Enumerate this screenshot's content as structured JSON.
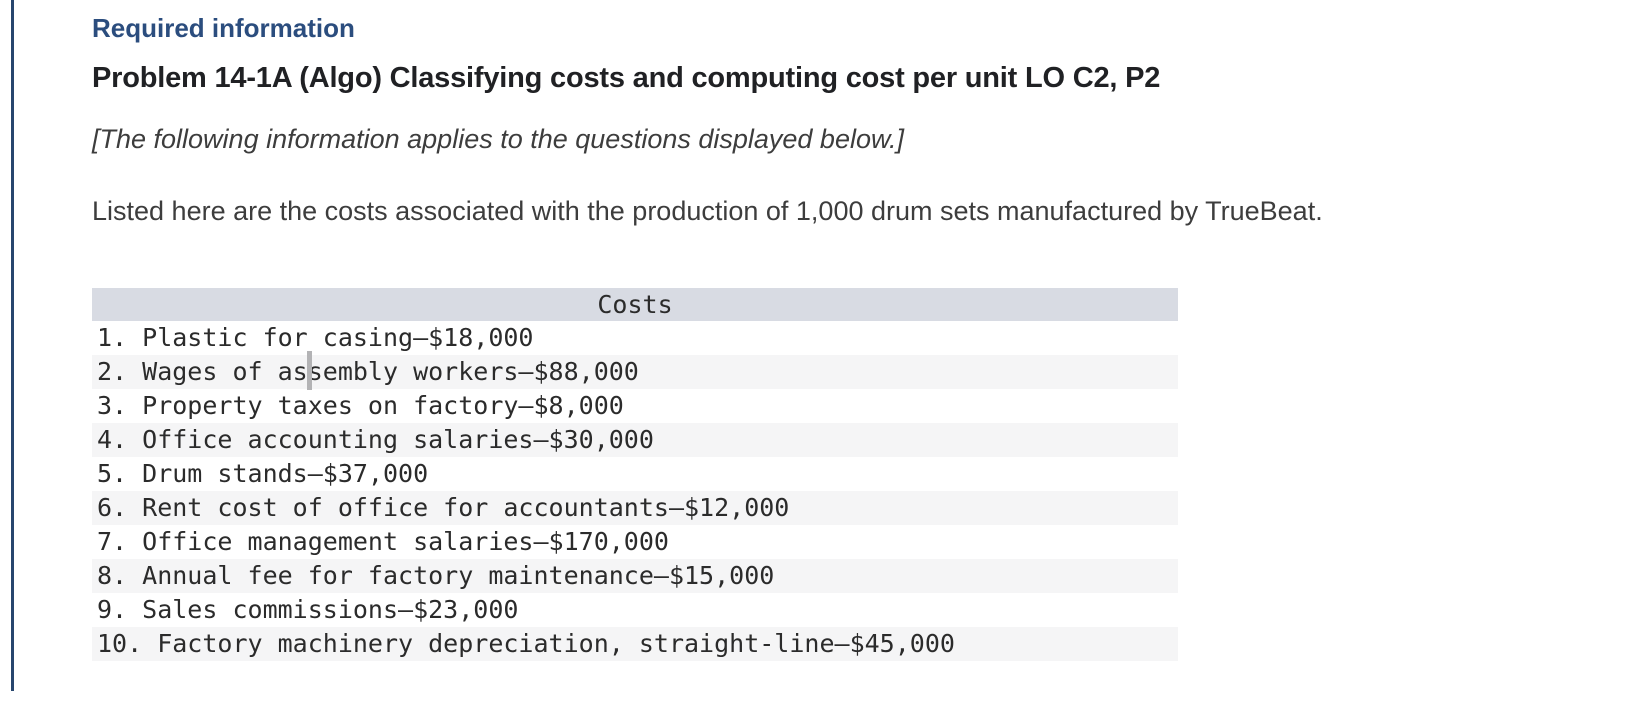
{
  "page": {
    "kicker": "Required information",
    "title": "Problem 14-1A (Algo) Classifying costs and computing cost per unit LO C2, P2",
    "note": "[The following information applies to the questions displayed below.]",
    "intro": "Listed here are the costs associated with the production of 1,000 drum sets manufactured by TrueBeat."
  },
  "costs_table": {
    "header": "Costs",
    "rows": [
      "1. Plastic for casing—$18,000",
      "2. Wages of assembly workers—$88,000",
      "3. Property taxes on factory—$8,000",
      "4. Office accounting salaries—$30,000",
      "5. Drum stands—$37,000",
      "6. Rent cost of office for accountants—$12,000",
      "7. Office management salaries—$170,000",
      "8. Annual fee for factory maintenance—$15,000",
      "9. Sales commissions—$23,000",
      "10. Factory machinery depreciation, straight-line—$45,000"
    ]
  },
  "colors": {
    "accent_blue": "#2b4d7e",
    "left_rule_navy": "#28466e",
    "table_header_bg": "#d8dbe3",
    "row_alt_bg": "#f5f5f6"
  }
}
